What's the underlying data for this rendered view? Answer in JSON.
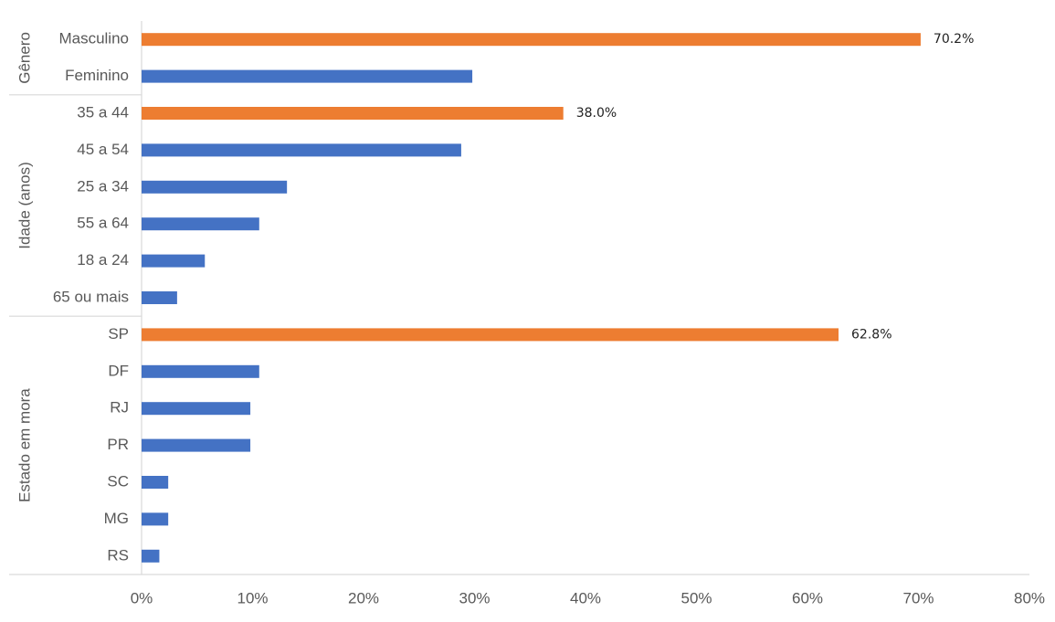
{
  "chart_data": {
    "type": "bar",
    "orientation": "horizontal",
    "groups": [
      {
        "name": "Gênero",
        "categories": [
          "Masculino",
          "Feminino"
        ],
        "values": [
          70.2,
          29.8
        ],
        "value_labels": [
          "70.2%",
          null
        ],
        "colors": [
          "#ed7d31",
          "#4472c4"
        ]
      },
      {
        "name": "Idade (anos)",
        "categories": [
          "35 a 44",
          "45 a 54",
          "25 a 34",
          "55 a 64",
          "18 a 24",
          "65 ou mais"
        ],
        "values": [
          38.0,
          28.8,
          13.1,
          10.6,
          5.7,
          3.2
        ],
        "value_labels": [
          "38.0%",
          null,
          null,
          null,
          null,
          null
        ],
        "colors": [
          "#ed7d31",
          "#4472c4",
          "#4472c4",
          "#4472c4",
          "#4472c4",
          "#4472c4"
        ]
      },
      {
        "name": "Estado em mora",
        "categories": [
          "SP",
          "DF",
          "RJ",
          "PR",
          "SC",
          "MG",
          "RS"
        ],
        "values": [
          62.8,
          10.6,
          9.8,
          9.8,
          2.4,
          2.4,
          1.6
        ],
        "value_labels": [
          "62.8%",
          null,
          null,
          null,
          null,
          null,
          null
        ],
        "colors": [
          "#ed7d31",
          "#4472c4",
          "#4472c4",
          "#4472c4",
          "#4472c4",
          "#4472c4",
          "#4472c4"
        ]
      }
    ],
    "xlim": [
      0,
      80
    ],
    "xticks": [
      {
        "value": 0,
        "label": "0%"
      },
      {
        "value": 10,
        "label": "10%"
      },
      {
        "value": 20,
        "label": "20%"
      },
      {
        "value": 30,
        "label": "30%"
      },
      {
        "value": 40,
        "label": "40%"
      },
      {
        "value": 50,
        "label": "50%"
      },
      {
        "value": 60,
        "label": "60%"
      },
      {
        "value": 70,
        "label": "70%"
      },
      {
        "value": 80,
        "label": "80%"
      }
    ],
    "grid": false
  }
}
